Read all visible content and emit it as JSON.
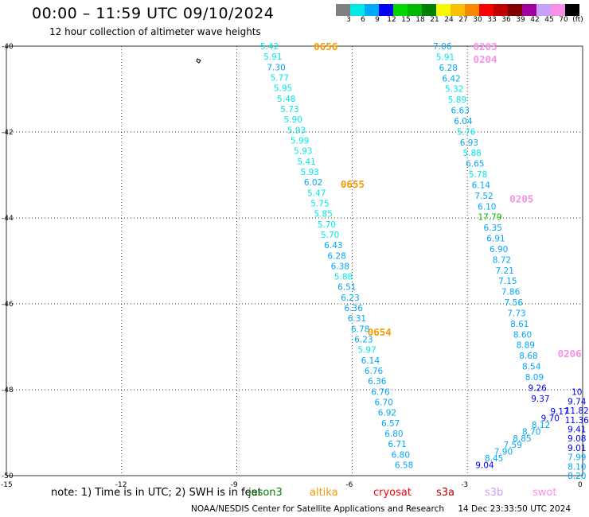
{
  "header": {
    "title": "00:00 – 11:59 UTC 09/10/2024",
    "subtitle": "12 hour collection of altimeter wave heights"
  },
  "colorbar": {
    "colors": [
      "#808080",
      "#00e8e8",
      "#00a8f8",
      "#0000f8",
      "#00d800",
      "#00b800",
      "#008000",
      "#f8f800",
      "#f8c000",
      "#f88800",
      "#f80000",
      "#c00000",
      "#800000",
      "#a000a0",
      "#c8a0f8",
      "#f890e8",
      "#000000"
    ],
    "labels": [
      "3",
      "6",
      "9",
      "12",
      "15",
      "18",
      "21",
      "24",
      "27",
      "30",
      "33",
      "36",
      "39",
      "42",
      "45",
      "70",
      "(ft)"
    ]
  },
  "map": {
    "y_ticks": [
      "-40",
      "-42",
      "-44",
      "-46",
      "-48",
      "-50"
    ],
    "x_ticks": [
      "-15",
      "-12",
      "-9",
      "-6",
      "-3",
      "0"
    ]
  },
  "chart_data": {
    "type": "scatter",
    "xlim": [
      -15,
      0
    ],
    "ylim": [
      -50,
      -40
    ],
    "grid": true,
    "tracks": [
      {
        "values": [
          5.42,
          5.91,
          7.3,
          5.77,
          5.95,
          5.48,
          5.73,
          5.9,
          5.93,
          5.99,
          5.93,
          5.41,
          5.93,
          6.02,
          5.47,
          5.75,
          5.85,
          5.7,
          5.7,
          6.43,
          6.28,
          6.38,
          5.88,
          6.51,
          6.23,
          6.36,
          6.31,
          6.78,
          6.23,
          5.97,
          6.14,
          6.76,
          6.36,
          6.76,
          6.7,
          6.92,
          6.57,
          6.8,
          6.71,
          6.8,
          6.58
        ],
        "x_start": -8.15,
        "x_end": -4.65,
        "y_start": -40.0,
        "y_end": -49.75
      },
      {
        "values": [
          7.06,
          5.91,
          6.28,
          6.42,
          5.32,
          5.89,
          6.63,
          6.04,
          5.76,
          6.93,
          5.88,
          6.65,
          5.78,
          6.14,
          7.52,
          6.1,
          17.79,
          6.35,
          6.91,
          6.9,
          8.72,
          7.21,
          7.15,
          7.86,
          7.56,
          7.73,
          8.61,
          8.6,
          8.89,
          8.68,
          8.54,
          8.09,
          9.26,
          9.37
        ],
        "x_start": -3.65,
        "x_end": -1.1,
        "y_start": -40.0,
        "y_end": -48.2
      },
      {
        "values": [
          10,
          9.74,
          11.82,
          11.36,
          9.41,
          9.08,
          9.01,
          7.99,
          8.1,
          8.2
        ],
        "x_start": -0.15,
        "x_end": -0.15,
        "y_start": -48.05,
        "y_end": -50.0
      },
      {
        "values": [
          9.04,
          8.45,
          7.9,
          7.59,
          8.85,
          8.7,
          8.12,
          9.7,
          9.17
        ],
        "x_start": -2.55,
        "x_end": -0.6,
        "y_start": -49.75,
        "y_end": -48.5
      }
    ],
    "pass_labels": [
      "0656",
      "0655",
      "0654",
      "0203",
      "0204",
      "0205",
      "0206"
    ]
  },
  "legend": {
    "note": "note:  1) Time is in UTC; 2) SWH is in feet",
    "satellites": [
      {
        "name": "jason3",
        "color": "#008000"
      },
      {
        "name": "altika",
        "color": "#f89800"
      },
      {
        "name": "cryosat",
        "color": "#f80000"
      },
      {
        "name": "s3a",
        "color": "#c00000"
      },
      {
        "name": "s3b",
        "color": "#c8a0f8"
      },
      {
        "name": "swot",
        "color": "#f890e8"
      }
    ]
  },
  "footer": {
    "credit": "NOAA/NESDIS Center for Satellite Applications and Research",
    "timestamp": "14 Dec 23:33:50 UTC 2024"
  }
}
